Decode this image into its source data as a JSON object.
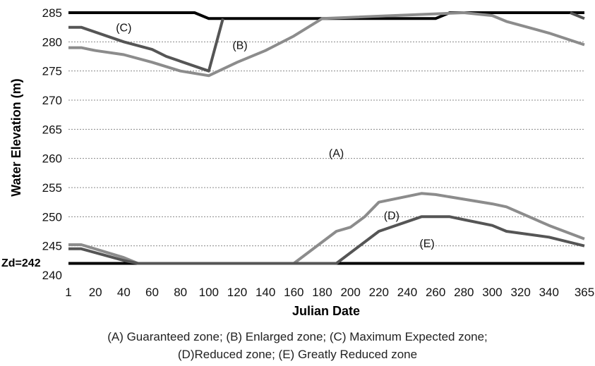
{
  "chart_data": {
    "type": "line",
    "xlabel": "Julian Date",
    "ylabel": "Water Elevation (m)",
    "xlim": [
      1,
      365
    ],
    "ylim": [
      240,
      285
    ],
    "x_ticks": [
      1,
      20,
      40,
      60,
      80,
      100,
      120,
      140,
      160,
      180,
      200,
      220,
      240,
      260,
      280,
      300,
      320,
      340,
      365
    ],
    "y_ticks": [
      240,
      245,
      250,
      255,
      260,
      265,
      270,
      275,
      280,
      285
    ],
    "grid": "horizontal dotted",
    "zd_label": "Zd=242",
    "series": [
      {
        "color": "#000000",
        "width": 4,
        "values": [
          [
            1,
            285
          ],
          [
            90,
            285
          ],
          [
            100,
            284
          ],
          [
            260,
            284
          ],
          [
            270,
            285
          ],
          [
            365,
            285
          ]
        ]
      },
      {
        "color": "#000000",
        "width": 4,
        "values": [
          [
            1,
            242
          ],
          [
            365,
            242
          ]
        ]
      },
      {
        "color": "#555555",
        "width": 4,
        "values": [
          [
            1,
            282.5
          ],
          [
            10,
            282.5
          ],
          [
            40,
            280
          ],
          [
            60,
            278.7
          ],
          [
            70,
            277.5
          ],
          [
            100,
            275
          ],
          [
            110,
            284
          ]
        ]
      },
      {
        "color": "#555555",
        "width": 4,
        "values": [
          [
            355,
            285
          ],
          [
            365,
            284
          ]
        ]
      },
      {
        "color": "#8c8c8c",
        "width": 4,
        "values": [
          [
            1,
            279
          ],
          [
            10,
            279
          ],
          [
            20,
            278.5
          ],
          [
            40,
            277.8
          ],
          [
            60,
            276.5
          ],
          [
            80,
            275
          ],
          [
            100,
            274.2
          ],
          [
            120,
            276.5
          ],
          [
            140,
            278.5
          ],
          [
            160,
            281
          ],
          [
            180,
            284
          ],
          [
            280,
            285
          ],
          [
            300,
            284.5
          ],
          [
            310,
            283.5
          ],
          [
            340,
            281.5
          ],
          [
            365,
            279.5
          ]
        ]
      },
      {
        "color": "#8c8c8c",
        "width": 4,
        "values": [
          [
            1,
            245.2
          ],
          [
            10,
            245.2
          ],
          [
            40,
            243
          ],
          [
            50,
            242
          ],
          [
            160,
            242
          ],
          [
            190,
            247.5
          ],
          [
            200,
            248.2
          ],
          [
            210,
            250
          ],
          [
            220,
            252.5
          ],
          [
            250,
            254
          ],
          [
            260,
            253.8
          ],
          [
            300,
            252.2
          ],
          [
            310,
            251.7
          ],
          [
            340,
            248.5
          ],
          [
            365,
            246.2
          ]
        ]
      },
      {
        "color": "#555555",
        "width": 4,
        "values": [
          [
            1,
            244.5
          ],
          [
            10,
            244.5
          ],
          [
            40,
            242.5
          ],
          [
            50,
            242
          ],
          [
            190,
            242
          ],
          [
            220,
            247.5
          ],
          [
            250,
            250
          ],
          [
            270,
            250
          ],
          [
            280,
            249.5
          ],
          [
            300,
            248.5
          ],
          [
            310,
            247.5
          ],
          [
            340,
            246.5
          ],
          [
            365,
            245
          ]
        ]
      }
    ],
    "annotations": [
      {
        "text": "(A)",
        "x": 190,
        "y": 261
      },
      {
        "text": "(B)",
        "x": 122,
        "y": 279.5
      },
      {
        "text": "(C)",
        "x": 40,
        "y": 282.5
      },
      {
        "text": "(D)",
        "x": 229,
        "y": 250.3
      },
      {
        "text": "(E)",
        "x": 254,
        "y": 245.5
      }
    ]
  },
  "caption": {
    "line1": "(A) Guaranteed zone;  (B) Enlarged zone;  (C) Maximum Expected zone;",
    "line2": "(D)Reduced zone;   (E) Greatly Reduced zone"
  }
}
